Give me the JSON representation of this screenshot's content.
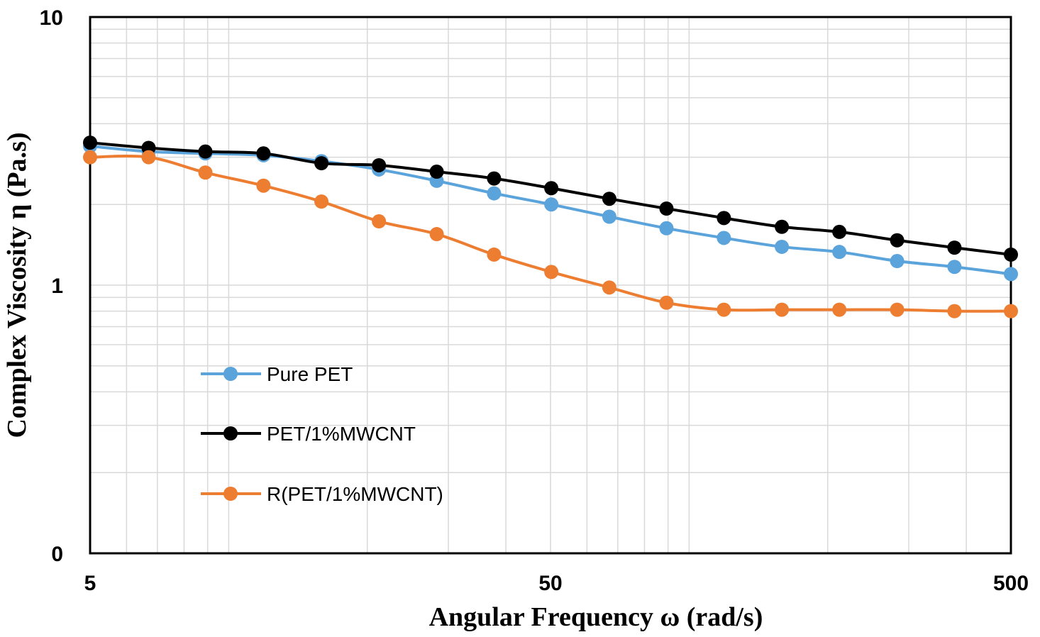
{
  "chart_data": {
    "type": "line",
    "xlabel": "Angular Frequency ω (rad/s)",
    "ylabel": "Complex Viscosity η (Pa.s)",
    "x_scale": "log",
    "y_scale": "log",
    "xlim": [
      5,
      500
    ],
    "ylim": [
      0.1,
      10
    ],
    "x_ticks": [
      {
        "value": 5,
        "label": "5"
      },
      {
        "value": 50,
        "label": "50"
      },
      {
        "value": 500,
        "label": "500"
      }
    ],
    "y_ticks": [
      {
        "value": 10,
        "label": "10"
      },
      {
        "value": 1,
        "label": "1"
      },
      {
        "value": 0.1,
        "label": "0"
      }
    ],
    "grid": true,
    "legend": "left-center",
    "x": [
      5,
      6.7,
      8.9,
      11.9,
      15.9,
      21.2,
      28.3,
      37.7,
      50.2,
      67.1,
      89.3,
      119,
      159,
      212,
      283,
      377,
      500
    ],
    "series": [
      {
        "name": "Pure PET",
        "color": "#5ba3db",
        "values": [
          3.3,
          3.15,
          3.1,
          3.05,
          2.9,
          2.7,
          2.45,
          2.2,
          2.0,
          1.8,
          1.63,
          1.5,
          1.39,
          1.33,
          1.23,
          1.17,
          1.1
        ]
      },
      {
        "name": "PET/1%MWCNT",
        "color": "#000000",
        "values": [
          3.4,
          3.25,
          3.15,
          3.1,
          2.85,
          2.8,
          2.65,
          2.5,
          2.3,
          2.1,
          1.93,
          1.78,
          1.65,
          1.58,
          1.47,
          1.38,
          1.3
        ]
      },
      {
        "name": "R(PET/1%MWCNT)",
        "color": "#ed7d31",
        "values": [
          3.0,
          3.0,
          2.63,
          2.35,
          2.05,
          1.73,
          1.55,
          1.3,
          1.12,
          0.98,
          0.86,
          0.81,
          0.81,
          0.81,
          0.81,
          0.8,
          0.8
        ]
      }
    ]
  }
}
